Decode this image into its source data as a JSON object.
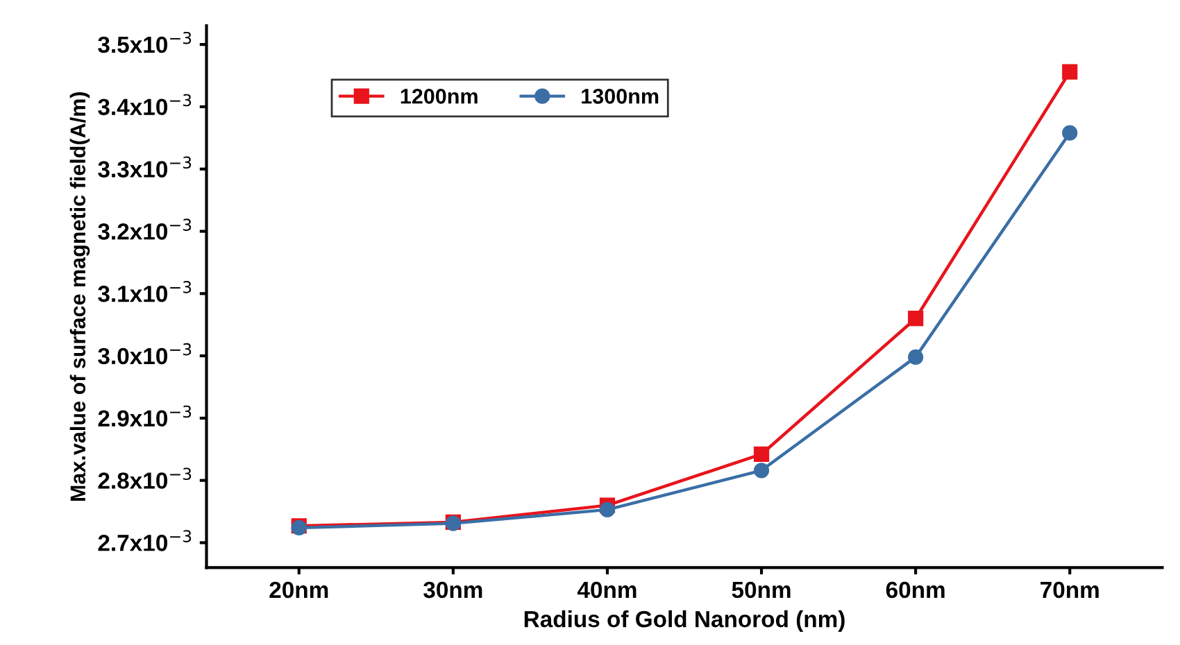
{
  "chart_data": {
    "type": "line",
    "xlabel": "Radius of Gold Nanorod (nm)",
    "ylabel": "Max.value of surface magnetic field(A/m)",
    "categories": [
      "20nm",
      "30nm",
      "40nm",
      "50nm",
      "60nm",
      "70nm"
    ],
    "series": [
      {
        "name": "1200nm",
        "color": "#e8141c",
        "marker": "square",
        "values": [
          0.002727,
          0.002733,
          0.00276,
          0.002842,
          0.00306,
          0.003456
        ]
      },
      {
        "name": "1300nm",
        "color": "#3a6ea5",
        "marker": "circle",
        "values": [
          0.002724,
          0.002731,
          0.002753,
          0.002816,
          0.002998,
          0.003358
        ]
      }
    ],
    "ylim": [
      0.00266,
      0.00353
    ],
    "yticks": [
      {
        "value": 0.0027,
        "label": "2.7x10$^{−3}$"
      },
      {
        "value": 0.0028,
        "label": "2.8x10$^{−3}$"
      },
      {
        "value": 0.0029,
        "label": "2.9x10$^{−3}$"
      },
      {
        "value": 0.003,
        "label": "3.0x10$^{−3}$"
      },
      {
        "value": 0.0031,
        "label": "3.1x10$^{−3}$"
      },
      {
        "value": 0.0032,
        "label": "3.2x10$^{−3}$"
      },
      {
        "value": 0.0033,
        "label": "3.3x10$^{−3}$"
      },
      {
        "value": 0.0034,
        "label": "3.4x10$^{−3}$"
      },
      {
        "value": 0.0035,
        "label": "3.5x10$^{−3}$"
      }
    ],
    "legend": "top left",
    "grid": false,
    "line_style": "solid"
  }
}
